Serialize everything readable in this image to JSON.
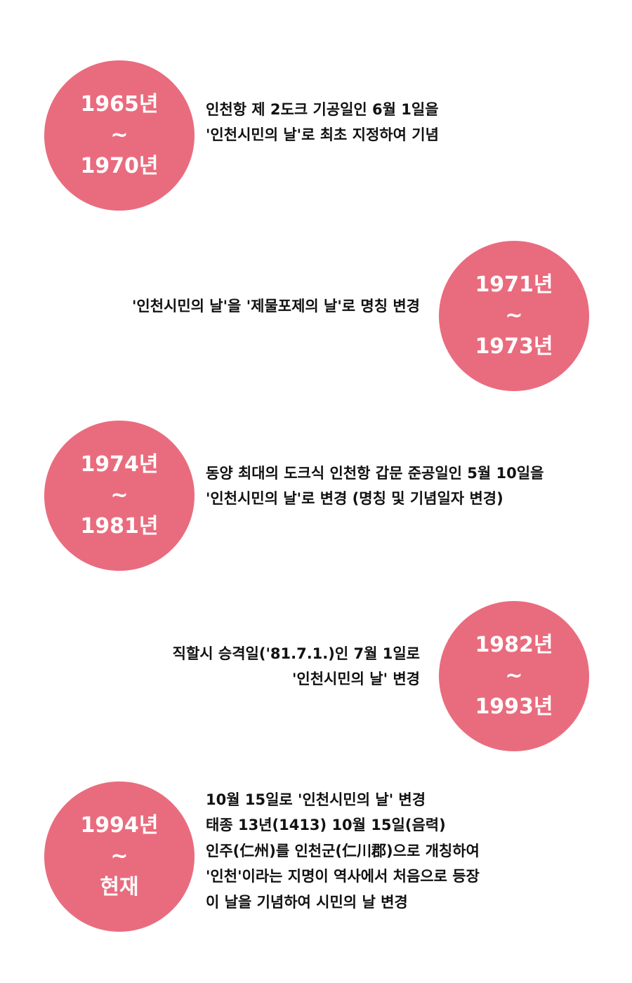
{
  "items": [
    {
      "period": {
        "start": "1965년",
        "separator": "~",
        "end": "1970년"
      },
      "lines": [
        "인천항 제 2도크 기공일인 6월 1일을",
        "'인천시민의 날'로 최초 지정하여 기념"
      ]
    },
    {
      "period": {
        "start": "1971년",
        "separator": "~",
        "end": "1973년"
      },
      "lines": [
        "'인천시민의 날'을 '제물포제의 날'로 명칭 변경"
      ]
    },
    {
      "period": {
        "start": "1974년",
        "separator": "~",
        "end": "1981년"
      },
      "lines": [
        "동양 최대의 도크식 인천항 갑문 준공일인 5월 10일을",
        "'인천시민의 날'로 변경 (명칭 및 기념일자 변경)"
      ]
    },
    {
      "period": {
        "start": "1982년",
        "separator": "~",
        "end": "1993년"
      },
      "lines": [
        "직할시 승격일('81.7.1.)인 7월 1일로",
        "'인천시민의 날' 변경"
      ]
    },
    {
      "period": {
        "start": "1994년",
        "separator": "~",
        "end": "현재"
      },
      "lines": [
        "10월 15일로 '인천시민의 날' 변경",
        "태종 13년(1413) 10월 15일(음력)",
        "인주(仁州)를 인천군(仁川郡)으로 개칭하여",
        "'인천'이라는 지명이 역사에서 처음으로 등장",
        "이 날을 기념하여 시민의 날 변경"
      ]
    }
  ]
}
